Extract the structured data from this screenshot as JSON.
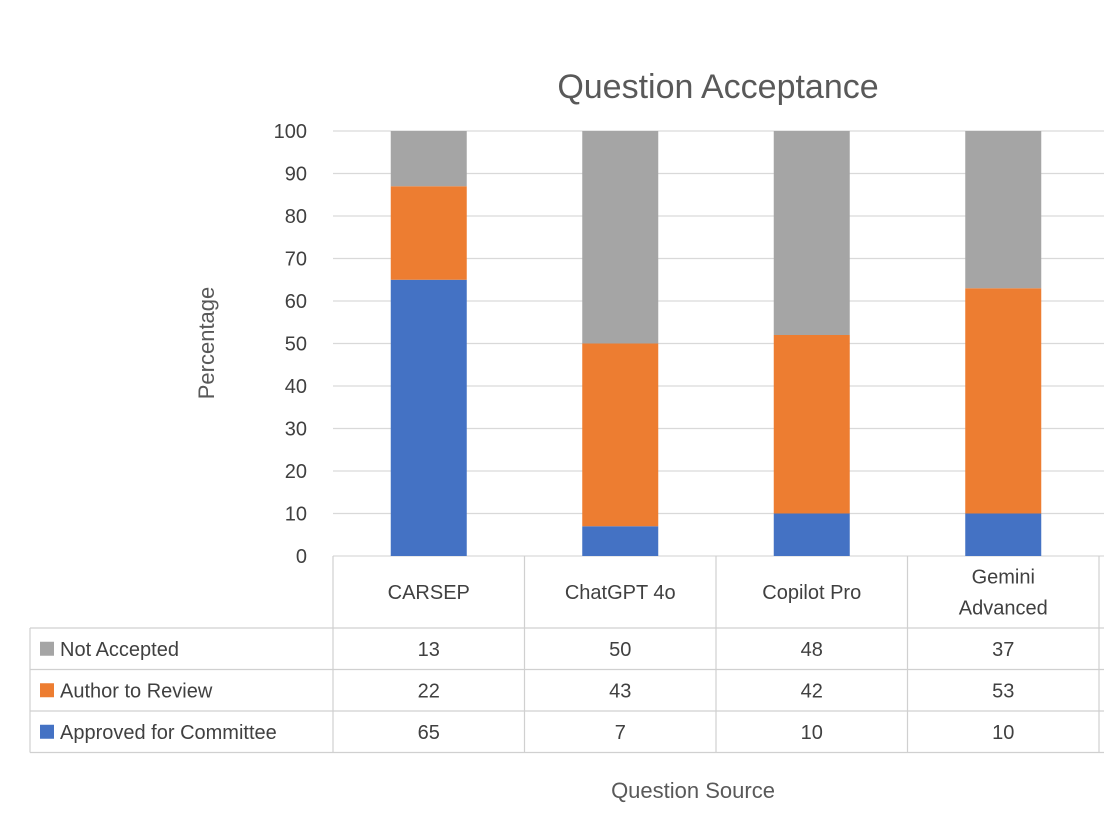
{
  "chart_data": {
    "type": "bar",
    "stacked": true,
    "title": "Question Acceptance",
    "xlabel": "Question Source",
    "ylabel": "Percentage",
    "ylim": [
      0,
      100
    ],
    "yticks": [
      0,
      10,
      20,
      30,
      40,
      50,
      60,
      70,
      80,
      90,
      100
    ],
    "grid": true,
    "categories": [
      "CARSEP",
      "ChatGPT 4o",
      "Copilot Pro",
      "Gemini Advanced"
    ],
    "category_lines": [
      [
        "CARSEP"
      ],
      [
        "ChatGPT 4o"
      ],
      [
        "Copilot Pro"
      ],
      [
        "Gemini",
        "Advanced"
      ]
    ],
    "series": [
      {
        "name": "Approved for Committee",
        "color": "#4472c4",
        "values": [
          65,
          7,
          10,
          10
        ]
      },
      {
        "name": "Author to Review",
        "color": "#ed7d31",
        "values": [
          22,
          43,
          42,
          53
        ]
      },
      {
        "name": "Not Accepted",
        "color": "#a5a5a5",
        "values": [
          13,
          50,
          48,
          37
        ]
      }
    ],
    "table_row_order": [
      "Not Accepted",
      "Author to Review",
      "Approved for Committee"
    ]
  }
}
